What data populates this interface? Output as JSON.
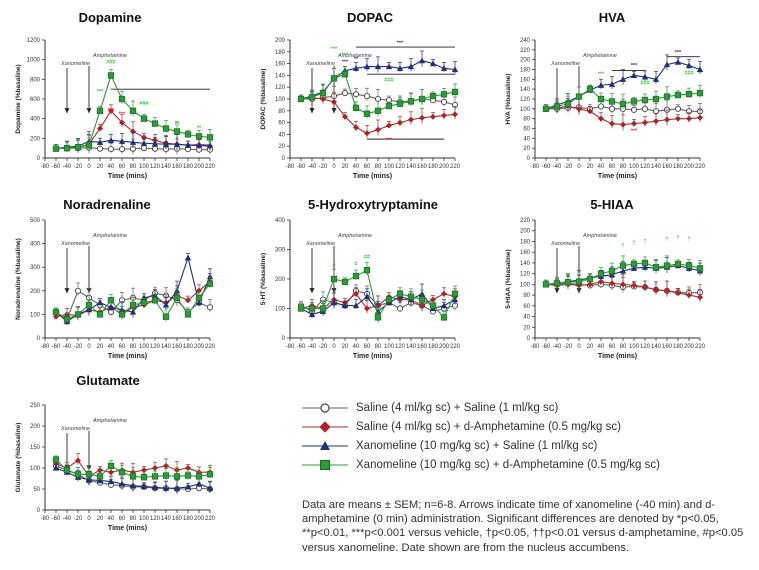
{
  "colors": {
    "saline": "#666666",
    "amph": "#a03232",
    "xano": "#1f2f78",
    "combo": "#2e9a3a",
    "stat_red": "#e8202a",
    "stat_green": "#33cc33"
  },
  "xticks": [
    "-80",
    "-60",
    "-40",
    "-20",
    "0",
    "20",
    "40",
    "60",
    "80",
    "100",
    "120",
    "140",
    "160",
    "180",
    "200",
    "220"
  ],
  "legend": [
    {
      "key": "saline",
      "label": "Saline (4 ml/kg sc) + Saline (1 ml/kg sc)"
    },
    {
      "key": "amph",
      "label": "Saline (4 ml/kg sc) + d-Amphetamine (0.5 mg/kg sc)"
    },
    {
      "key": "xano",
      "label": "Xanomeline (10 mg/kg sc) + Saline (1 ml/kg sc)"
    },
    {
      "key": "combo",
      "label": "Xanomeline (10 mg/kg sc) + d-Amphetamine (0.5 mg/kg sc)"
    }
  ],
  "footnote": "Data are means ± SEM; n=6-8. Arrows indicate time of xanomeline (-40 min) and d-amphetamine (0 min) administration. Significant differences are denoted by *p<0.05, **p<0.01, ***p<0.001 versus vehicle, †p<0.05, ††p<0.01 versus d-amphetamine,  #p<0.05 versus xanomeline. Date shown are from the nucleus accumbens.",
  "chart_data": [
    {
      "type": "line",
      "title": "Dopamine",
      "xlabel": "Time (mins)",
      "ylabel": "Dopamine (%basaline)",
      "xlim": [
        -80,
        220
      ],
      "ylim": [
        0,
        1200
      ],
      "yticks": [
        0,
        200,
        400,
        600,
        800,
        1000,
        1200
      ],
      "x": [
        -60,
        -40,
        -20,
        0,
        20,
        40,
        60,
        80,
        100,
        120,
        140,
        160,
        180,
        200,
        220
      ],
      "arrows": [
        {
          "x": -40,
          "label": "Xanomeline"
        },
        {
          "x": 0,
          "label": "Amphetamine"
        }
      ],
      "series": [
        {
          "key": "saline",
          "values": [
            95,
            100,
            100,
            105,
            95,
            90,
            90,
            95,
            100,
            95,
            90,
            95,
            90,
            85,
            85
          ]
        },
        {
          "key": "amph",
          "values": [
            95,
            100,
            110,
            140,
            300,
            480,
            360,
            270,
            210,
            180,
            150,
            140,
            130,
            125,
            120
          ]
        },
        {
          "key": "xano",
          "values": [
            95,
            110,
            120,
            170,
            160,
            180,
            170,
            160,
            150,
            145,
            140,
            140,
            130,
            135,
            130
          ]
        },
        {
          "key": "combo",
          "values": [
            95,
            100,
            110,
            130,
            480,
            840,
            600,
            480,
            400,
            350,
            300,
            270,
            240,
            220,
            210
          ]
        }
      ],
      "annotations": [
        {
          "x": 20,
          "y": 660,
          "text": "***",
          "color": "stat_green"
        },
        {
          "x": 40,
          "y": 960,
          "text": "###",
          "color": "stat_green"
        },
        {
          "x": 100,
          "y": 540,
          "text": "###",
          "color": "stat_green"
        },
        {
          "x": 40,
          "y": 470,
          "text": "***",
          "color": "stat_red"
        },
        {
          "x": 60,
          "y": 430,
          "text": "***",
          "color": "stat_red"
        },
        {
          "x": 160,
          "y": 330,
          "text": "††",
          "color": "stat_green"
        },
        {
          "x": 200,
          "y": 290,
          "text": "**",
          "color": "stat_green"
        }
      ],
      "bars": [
        {
          "x1": 40,
          "x2": 220,
          "y": 700
        }
      ]
    },
    {
      "type": "line",
      "title": "DOPAC",
      "xlabel": "Time (mins)",
      "ylabel": "DOPAC (%basaline)",
      "xlim": [
        -80,
        220
      ],
      "ylim": [
        0,
        200
      ],
      "yticks": [
        0,
        20,
        40,
        60,
        80,
        100,
        120,
        140,
        160,
        180,
        200
      ],
      "x": [
        -60,
        -40,
        -20,
        0,
        20,
        40,
        60,
        80,
        100,
        120,
        140,
        160,
        180,
        200,
        220
      ],
      "arrows": [
        {
          "x": -40,
          "label": "Xanomeline"
        },
        {
          "x": 0,
          "label": "Amphetamine"
        }
      ],
      "series": [
        {
          "key": "saline",
          "values": [
            100,
            100,
            102,
            105,
            110,
            108,
            105,
            100,
            98,
            95,
            97,
            100,
            98,
            95,
            90
          ]
        },
        {
          "key": "amph",
          "values": [
            100,
            102,
            100,
            95,
            70,
            52,
            42,
            48,
            55,
            60,
            65,
            68,
            70,
            72,
            74
          ]
        },
        {
          "key": "xano",
          "values": [
            100,
            105,
            112,
            135,
            148,
            152,
            155,
            155,
            155,
            152,
            155,
            165,
            160,
            152,
            150
          ]
        },
        {
          "key": "combo",
          "values": [
            100,
            103,
            110,
            135,
            142,
            85,
            75,
            80,
            88,
            92,
            96,
            100,
            105,
            108,
            112
          ]
        }
      ],
      "annotations": [
        {
          "x": 0,
          "y": 182,
          "text": "***",
          "color": "stat_green"
        },
        {
          "x": 20,
          "y": 172,
          "text": "***",
          "color": "stat_green"
        },
        {
          "x": 20,
          "y": 160,
          "text": "***",
          "color": "xano"
        },
        {
          "x": 40,
          "y": 165,
          "text": "**",
          "color": "xano"
        },
        {
          "x": 100,
          "y": 130,
          "text": "###",
          "color": "stat_green"
        },
        {
          "x": 120,
          "y": 192,
          "text": "***",
          "color": "xano"
        },
        {
          "x": 100,
          "y": 28,
          "text": "***",
          "color": "stat_red"
        }
      ],
      "bars": [
        {
          "x1": 40,
          "x2": 220,
          "y": 188
        },
        {
          "x1": 60,
          "x2": 220,
          "y": 142
        },
        {
          "x1": 60,
          "x2": 200,
          "y": 32
        }
      ]
    },
    {
      "type": "line",
      "title": "HVA",
      "xlabel": "Time (mins)",
      "ylabel": "HVA (%basaline)",
      "xlim": [
        -80,
        220
      ],
      "ylim": [
        0,
        240
      ],
      "yticks": [
        0,
        20,
        40,
        60,
        80,
        100,
        120,
        140,
        160,
        180,
        200,
        220,
        240
      ],
      "x": [
        -60,
        -40,
        -20,
        0,
        20,
        40,
        60,
        80,
        100,
        120,
        140,
        160,
        180,
        200,
        220
      ],
      "arrows": [
        {
          "x": -40,
          "label": "Xanomeline"
        },
        {
          "x": 0,
          "label": "Amphetamine"
        }
      ],
      "series": [
        {
          "key": "saline",
          "values": [
            100,
            100,
            102,
            103,
            100,
            105,
            100,
            100,
            98,
            100,
            95,
            98,
            100,
            95,
            95
          ]
        },
        {
          "key": "amph",
          "values": [
            100,
            102,
            105,
            100,
            95,
            80,
            70,
            68,
            70,
            72,
            75,
            78,
            80,
            80,
            82
          ]
        },
        {
          "key": "xano",
          "values": [
            100,
            108,
            115,
            125,
            138,
            148,
            150,
            160,
            168,
            165,
            160,
            190,
            195,
            188,
            180
          ]
        },
        {
          "key": "combo",
          "values": [
            100,
            105,
            110,
            125,
            140,
            120,
            115,
            110,
            115,
            118,
            120,
            125,
            128,
            130,
            132
          ]
        }
      ],
      "annotations": [
        {
          "x": 40,
          "y": 168,
          "text": "***",
          "color": "stat_green"
        },
        {
          "x": 100,
          "y": 185,
          "text": "***",
          "color": "xano"
        },
        {
          "x": 180,
          "y": 212,
          "text": "***",
          "color": "xano"
        },
        {
          "x": 200,
          "y": 170,
          "text": "###",
          "color": "stat_green"
        },
        {
          "x": 120,
          "y": 150,
          "text": "###",
          "color": "stat_green"
        },
        {
          "x": 100,
          "y": 52,
          "text": "***",
          "color": "stat_red"
        }
      ],
      "bars": [
        {
          "x1": 60,
          "x2": 120,
          "y": 178
        },
        {
          "x1": 160,
          "x2": 220,
          "y": 206
        }
      ]
    },
    {
      "type": "line",
      "title": "Noradrenaline",
      "xlabel": "Time (mins)",
      "ylabel": "Noradrenaline (%basaline)",
      "xlim": [
        -80,
        220
      ],
      "ylim": [
        0,
        500
      ],
      "yticks": [
        0,
        100,
        200,
        300,
        400,
        500
      ],
      "x": [
        -60,
        -40,
        -20,
        0,
        20,
        40,
        60,
        80,
        100,
        120,
        140,
        160,
        180,
        200,
        220
      ],
      "arrows": [
        {
          "x": -40,
          "label": "Xanomeline"
        },
        {
          "x": 0,
          "label": "Amphetamine"
        }
      ],
      "series": [
        {
          "key": "saline",
          "values": [
            110,
            80,
            200,
            170,
            140,
            110,
            160,
            170,
            160,
            190,
            180,
            160,
            110,
            150,
            130
          ]
        },
        {
          "key": "amph",
          "values": [
            90,
            100,
            95,
            120,
            110,
            130,
            100,
            130,
            140,
            160,
            150,
            180,
            160,
            200,
            240
          ]
        },
        {
          "key": "xano",
          "values": [
            110,
            70,
            100,
            120,
            150,
            130,
            120,
            110,
            170,
            180,
            140,
            200,
            340,
            150,
            260
          ]
        },
        {
          "key": "combo",
          "values": [
            110,
            80,
            100,
            140,
            100,
            160,
            100,
            140,
            150,
            160,
            90,
            170,
            100,
            170,
            230
          ]
        }
      ],
      "annotations": [],
      "bars": []
    },
    {
      "type": "line",
      "title": "5-Hydroxytryptamine",
      "xlabel": "Time (mins)",
      "ylabel": "5-HT (%basaline)",
      "xlim": [
        -80,
        220
      ],
      "ylim": [
        0,
        400
      ],
      "yticks": [
        0,
        100,
        200,
        300,
        400
      ],
      "x": [
        -60,
        -40,
        -20,
        0,
        20,
        40,
        60,
        80,
        100,
        120,
        140,
        160,
        180,
        200,
        220
      ],
      "arrows": [
        {
          "x": -40,
          "label": "Xanomeline"
        },
        {
          "x": 0,
          "label": "Amphetamine"
        }
      ],
      "series": [
        {
          "key": "saline",
          "values": [
            110,
            90,
            130,
            120,
            110,
            160,
            150,
            110,
            120,
            100,
            120,
            110,
            90,
            100,
            110
          ]
        },
        {
          "key": "amph",
          "values": [
            100,
            110,
            100,
            130,
            120,
            150,
            100,
            110,
            140,
            130,
            130,
            110,
            130,
            150,
            140
          ]
        },
        {
          "key": "xano",
          "values": [
            100,
            80,
            90,
            120,
            110,
            110,
            140,
            90,
            120,
            140,
            130,
            150,
            100,
            110,
            130
          ]
        },
        {
          "key": "combo",
          "values": [
            100,
            100,
            100,
            200,
            190,
            210,
            230,
            70,
            130,
            150,
            140,
            130,
            110,
            70,
            150
          ]
        }
      ],
      "annotations": [
        {
          "x": 0,
          "y": 240,
          "text": "#",
          "color": "stat_green"
        },
        {
          "x": 40,
          "y": 245,
          "text": "#",
          "color": "stat_green"
        },
        {
          "x": 60,
          "y": 270,
          "text": "##",
          "color": "stat_green"
        }
      ],
      "bars": []
    },
    {
      "type": "line",
      "title": "5-HIAA",
      "xlabel": "Time (mins)",
      "ylabel": "5-HIAA (%basaline)",
      "xlim": [
        -80,
        220
      ],
      "ylim": [
        0,
        220
      ],
      "yticks": [
        0,
        20,
        40,
        60,
        80,
        100,
        120,
        140,
        160,
        180,
        200,
        220
      ],
      "x": [
        -60,
        -40,
        -20,
        0,
        20,
        40,
        60,
        80,
        100,
        120,
        140,
        160,
        180,
        200,
        220
      ],
      "arrows": [
        {
          "x": -40,
          "label": "Xanomeline"
        },
        {
          "x": 0,
          "label": "Amphetamine"
        }
      ],
      "series": [
        {
          "key": "saline",
          "values": [
            100,
            100,
            102,
            100,
            98,
            100,
            98,
            95,
            96,
            95,
            90,
            88,
            85,
            84,
            85
          ]
        },
        {
          "key": "amph",
          "values": [
            100,
            98,
            100,
            98,
            100,
            105,
            102,
            100,
            98,
            95,
            90,
            88,
            84,
            80,
            76
          ]
        },
        {
          "key": "xano",
          "values": [
            100,
            102,
            105,
            108,
            112,
            115,
            118,
            125,
            130,
            132,
            130,
            132,
            135,
            130,
            125
          ]
        },
        {
          "key": "combo",
          "values": [
            100,
            102,
            104,
            105,
            110,
            120,
            125,
            135,
            138,
            140,
            132,
            135,
            138,
            135,
            130
          ]
        }
      ],
      "annotations": [
        {
          "x": 80,
          "y": 170,
          "text": "†",
          "color": "stat_green"
        },
        {
          "x": 100,
          "y": 175,
          "text": "†",
          "color": "stat_green"
        },
        {
          "x": 120,
          "y": 178,
          "text": "†",
          "color": "stat_green"
        },
        {
          "x": 160,
          "y": 182,
          "text": "†",
          "color": "stat_green"
        },
        {
          "x": 180,
          "y": 185,
          "text": "†",
          "color": "stat_green"
        },
        {
          "x": 200,
          "y": 182,
          "text": "†",
          "color": "stat_green"
        }
      ],
      "bars": []
    },
    {
      "type": "line",
      "title": "Glutamate",
      "xlabel": "Time (mins)",
      "ylabel": "Glutamate (%basaline)",
      "xlim": [
        -80,
        220
      ],
      "ylim": [
        0,
        250
      ],
      "yticks": [
        0,
        50,
        100,
        150,
        200,
        250
      ],
      "x": [
        -60,
        -40,
        -20,
        0,
        20,
        40,
        60,
        80,
        100,
        120,
        140,
        160,
        180,
        200,
        220
      ],
      "arrows": [
        {
          "x": -40,
          "label": "Xanomeline"
        },
        {
          "x": 0,
          "label": "Amphetamine"
        }
      ],
      "series": [
        {
          "key": "saline",
          "values": [
            105,
            95,
            85,
            70,
            65,
            60,
            58,
            55,
            55,
            52,
            52,
            50,
            50,
            52,
            50
          ]
        },
        {
          "key": "amph",
          "values": [
            110,
            100,
            118,
            80,
            95,
            90,
            95,
            90,
            95,
            100,
            105,
            95,
            100,
            90,
            90
          ]
        },
        {
          "key": "xano",
          "values": [
            100,
            90,
            78,
            72,
            70,
            68,
            62,
            58,
            56,
            54,
            52,
            52,
            55,
            62,
            52
          ]
        },
        {
          "key": "combo",
          "values": [
            120,
            95,
            85,
            85,
            80,
            105,
            90,
            80,
            78,
            80,
            82,
            80,
            82,
            80,
            85
          ]
        }
      ],
      "annotations": [],
      "bars": []
    }
  ]
}
